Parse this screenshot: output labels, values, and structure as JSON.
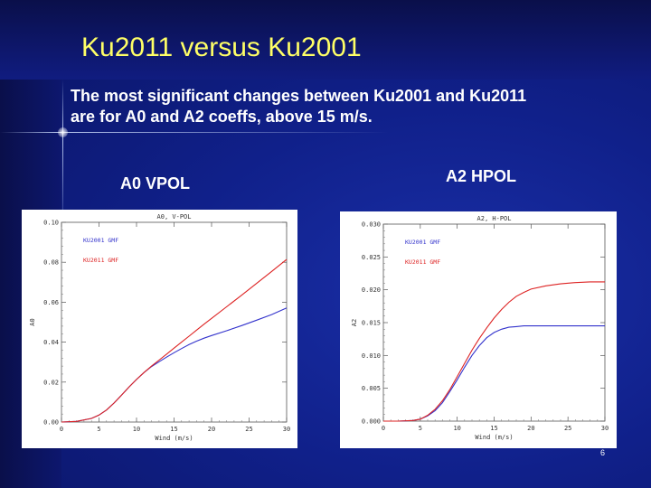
{
  "slide": {
    "title": "Ku2011 versus Ku2001",
    "subtitle_line1": "The most significant changes between Ku2001 and Ku2011",
    "subtitle_line2": "are for A0 and A2 coeffs, above 15 m/s.",
    "label_a0": "A0 VPOL",
    "label_a2": "A2 HPOL",
    "page_number": "6"
  },
  "chart_data": [
    {
      "type": "line",
      "title": "A0, V-POL",
      "xlabel": "Wind (m/s)",
      "ylabel": "A0",
      "xlim": [
        0,
        30
      ],
      "ylim": [
        0,
        0.1
      ],
      "xticks": [
        0,
        5,
        10,
        15,
        20,
        25,
        30
      ],
      "xtick_labels": [
        "0",
        "5",
        "10",
        "15",
        "20",
        "25",
        "30"
      ],
      "yticks": [
        0,
        0.02,
        0.04,
        0.06,
        0.08,
        0.1
      ],
      "ytick_labels": [
        "0.00",
        "0.02",
        "0.04",
        "0.06",
        "0.08",
        "0.10"
      ],
      "legend_position": "top-left",
      "series": [
        {
          "name": "KU2001 GMF",
          "color": "#3333cc",
          "x": [
            0,
            2,
            4,
            5,
            6,
            7,
            8,
            9,
            10,
            11,
            12,
            13,
            14,
            15,
            16,
            17,
            18,
            19,
            20,
            22,
            24,
            26,
            28,
            30
          ],
          "y": [
            0,
            0.0003,
            0.0018,
            0.0035,
            0.006,
            0.0095,
            0.0135,
            0.0175,
            0.0213,
            0.0248,
            0.0278,
            0.0302,
            0.0325,
            0.0347,
            0.0368,
            0.0388,
            0.0405,
            0.042,
            0.0433,
            0.0457,
            0.0483,
            0.051,
            0.0538,
            0.0571
          ]
        },
        {
          "name": "KU2011 GMF",
          "color": "#dd2222",
          "x": [
            0,
            2,
            4,
            5,
            6,
            7,
            8,
            9,
            10,
            11,
            12,
            13,
            14,
            15,
            16,
            17,
            18,
            19,
            20,
            22,
            24,
            26,
            28,
            30
          ],
          "y": [
            0,
            0.0003,
            0.0018,
            0.0035,
            0.006,
            0.0095,
            0.0135,
            0.0175,
            0.0213,
            0.0248,
            0.028,
            0.031,
            0.034,
            0.037,
            0.04,
            0.043,
            0.046,
            0.049,
            0.0519,
            0.0577,
            0.0635,
            0.0694,
            0.0754,
            0.0814
          ]
        }
      ]
    },
    {
      "type": "line",
      "title": "A2, H-POL",
      "xlabel": "Wind (m/s)",
      "ylabel": "A2",
      "xlim": [
        0,
        30
      ],
      "ylim": [
        0,
        0.03
      ],
      "xticks": [
        0,
        5,
        10,
        15,
        20,
        25,
        30
      ],
      "xtick_labels": [
        "0",
        "5",
        "10",
        "15",
        "20",
        "25",
        "30"
      ],
      "yticks": [
        0,
        0.005,
        0.01,
        0.015,
        0.02,
        0.025,
        0.03
      ],
      "ytick_labels": [
        "0.000",
        "0.005",
        "0.010",
        "0.015",
        "0.020",
        "0.025",
        "0.030"
      ],
      "legend_position": "top-left",
      "series": [
        {
          "name": "KU2001 GMF",
          "color": "#3333cc",
          "x": [
            0,
            2,
            4,
            5,
            6,
            7,
            8,
            9,
            10,
            11,
            12,
            13,
            14,
            15,
            16,
            17,
            18,
            19,
            20,
            22,
            24,
            26,
            28,
            30
          ],
          "y": [
            0,
            0,
            0.0001,
            0.0003,
            0.0008,
            0.0016,
            0.0028,
            0.0045,
            0.0063,
            0.0082,
            0.01,
            0.0115,
            0.0127,
            0.0135,
            0.014,
            0.0143,
            0.0144,
            0.0145,
            0.0145,
            0.0145,
            0.0145,
            0.0145,
            0.0145,
            0.0145
          ]
        },
        {
          "name": "KU2011 GMF",
          "color": "#dd2222",
          "x": [
            0,
            2,
            4,
            5,
            6,
            7,
            8,
            9,
            10,
            11,
            12,
            13,
            14,
            15,
            16,
            17,
            18,
            19,
            20,
            22,
            24,
            26,
            28,
            30
          ],
          "y": [
            0,
            0,
            0.0001,
            0.0003,
            0.0009,
            0.0018,
            0.0031,
            0.0048,
            0.0068,
            0.0088,
            0.0108,
            0.0126,
            0.0142,
            0.0157,
            0.017,
            0.0181,
            0.019,
            0.0196,
            0.0201,
            0.0206,
            0.0209,
            0.0211,
            0.0212,
            0.0212
          ]
        }
      ]
    }
  ]
}
